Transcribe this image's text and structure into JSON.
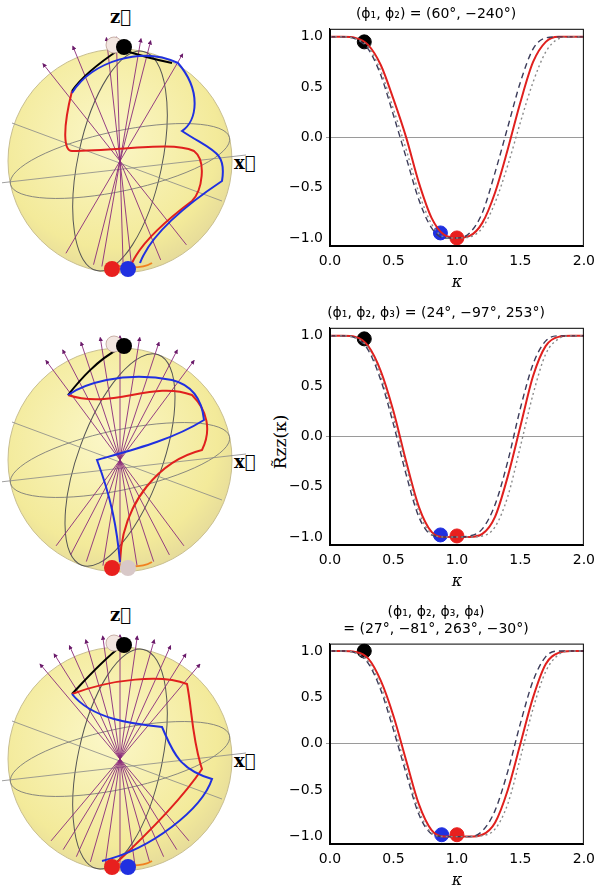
{
  "chart_data": [
    {
      "type": "line",
      "title": "(ϕ₁, ϕ₂) = (60°, −240°)",
      "x_label": "κ",
      "xlim": [
        0,
        2
      ],
      "xticks": [
        {
          "value": 0,
          "label": "0.0"
        },
        {
          "value": 0.5,
          "label": "0.5"
        },
        {
          "value": 1,
          "label": "1.0"
        },
        {
          "value": 1.5,
          "label": "1.5"
        },
        {
          "value": 2,
          "label": "2.0"
        }
      ],
      "ylim": [
        -1.08,
        1.08
      ],
      "yticks": [
        {
          "value": -1,
          "label": "−1.0"
        },
        {
          "value": -0.5,
          "label": "−0.5"
        },
        {
          "value": 0,
          "label": "0.0"
        },
        {
          "value": 0.5,
          "label": "0.5"
        },
        {
          "value": 1,
          "label": "1.0"
        }
      ],
      "grid": false,
      "x": [
        0,
        0.1,
        0.2,
        0.3,
        0.4,
        0.5,
        0.6,
        0.7,
        0.8,
        0.9,
        1.0,
        1.1,
        1.2,
        1.3,
        1.4,
        1.5,
        1.6,
        1.7,
        1.8,
        1.9,
        2.0
      ],
      "series": [
        {
          "color": "#8a8a8a",
          "line_style": "dotted",
          "values": [
            1,
            1,
            0.98,
            0.9,
            0.66,
            0.28,
            -0.12,
            -0.55,
            -0.86,
            -0.99,
            -1,
            -0.99,
            -0.9,
            -0.65,
            -0.28,
            0.15,
            0.55,
            0.85,
            0.98,
            1,
            1
          ]
        },
        {
          "color": "#3c3c5a",
          "line_style": "dashed",
          "values": [
            1,
            1,
            0.98,
            0.88,
            0.62,
            0.22,
            -0.2,
            -0.62,
            -0.9,
            -1,
            -1,
            -0.95,
            -0.75,
            -0.35,
            0.1,
            0.55,
            0.88,
            0.99,
            1,
            1,
            1
          ]
        },
        {
          "color": "#e0201e",
          "line_style": "solid",
          "values": [
            1,
            1,
            0.99,
            0.92,
            0.72,
            0.38,
            0.0,
            -0.45,
            -0.8,
            -0.97,
            -1.0,
            -0.98,
            -0.85,
            -0.55,
            -0.12,
            0.35,
            0.75,
            0.95,
            1,
            1,
            1
          ]
        }
      ],
      "points": [
        {
          "x": 0.27,
          "y": 0.95,
          "color": "#000000",
          "marker": "circle"
        },
        {
          "x": 0.87,
          "y": -0.95,
          "color": "#2030e0",
          "marker": "circle"
        },
        {
          "x": 1.0,
          "y": -1.0,
          "color": "#e8201e",
          "marker": "circle"
        }
      ]
    },
    {
      "type": "line",
      "title": "(ϕ₁, ϕ₂, ϕ₃) = (24°, −97°, 253°)",
      "x_label": "κ",
      "y_label": "R̃zz(κ)",
      "xlim": [
        0,
        2
      ],
      "xticks": [
        {
          "value": 0,
          "label": "0.0"
        },
        {
          "value": 0.5,
          "label": "0.5"
        },
        {
          "value": 1,
          "label": "1.0"
        },
        {
          "value": 1.5,
          "label": "1.5"
        },
        {
          "value": 2,
          "label": "2.0"
        }
      ],
      "ylim": [
        -1.08,
        1.08
      ],
      "yticks": [
        {
          "value": -1,
          "label": "−1.0"
        },
        {
          "value": -0.5,
          "label": "−0.5"
        },
        {
          "value": 0,
          "label": "0.0"
        },
        {
          "value": 0.5,
          "label": "0.5"
        },
        {
          "value": 1,
          "label": "1.0"
        }
      ],
      "grid": false,
      "x": [
        0,
        0.1,
        0.2,
        0.3,
        0.4,
        0.5,
        0.6,
        0.7,
        0.8,
        0.9,
        1.0,
        1.1,
        1.2,
        1.3,
        1.4,
        1.5,
        1.6,
        1.7,
        1.8,
        1.9,
        2.0
      ],
      "series": [
        {
          "color": "#8a8a8a",
          "line_style": "dotted",
          "values": [
            1,
            1,
            0.98,
            0.88,
            0.6,
            0.18,
            -0.3,
            -0.75,
            -0.97,
            -1,
            -1,
            -1,
            -0.99,
            -0.9,
            -0.6,
            -0.1,
            0.42,
            0.82,
            0.97,
            1,
            1
          ]
        },
        {
          "color": "#3c3c5a",
          "line_style": "dashed",
          "values": [
            1,
            1,
            0.98,
            0.86,
            0.56,
            0.12,
            -0.38,
            -0.8,
            -0.98,
            -1,
            -1,
            -0.99,
            -0.92,
            -0.68,
            -0.25,
            0.28,
            0.72,
            0.95,
            1,
            1,
            1
          ]
        },
        {
          "color": "#e0201e",
          "line_style": "solid",
          "values": [
            1,
            1,
            0.99,
            0.9,
            0.65,
            0.25,
            -0.25,
            -0.7,
            -0.95,
            -1,
            -1,
            -1,
            -0.97,
            -0.8,
            -0.4,
            0.1,
            0.6,
            0.9,
            0.99,
            1,
            1
          ]
        }
      ],
      "points": [
        {
          "x": 0.27,
          "y": 0.97,
          "color": "#000000",
          "marker": "circle"
        },
        {
          "x": 0.87,
          "y": -0.98,
          "color": "#2030e0",
          "marker": "circle"
        },
        {
          "x": 1.0,
          "y": -0.99,
          "color": "#e8201e",
          "marker": "circle"
        }
      ]
    },
    {
      "type": "line",
      "title": [
        "(ϕ₁, ϕ₂, ϕ₃, ϕ₄)",
        "= (27°, −81°, 263°, −30°)"
      ],
      "x_label": "κ",
      "xlim": [
        0,
        2
      ],
      "xticks": [
        {
          "value": 0,
          "label": "0.0"
        },
        {
          "value": 0.5,
          "label": "0.5"
        },
        {
          "value": 1,
          "label": "1.0"
        },
        {
          "value": 1.5,
          "label": "1.5"
        },
        {
          "value": 2,
          "label": "2.0"
        }
      ],
      "ylim": [
        -1.08,
        1.08
      ],
      "yticks": [
        {
          "value": -1,
          "label": "−1.0"
        },
        {
          "value": -0.5,
          "label": "−0.5"
        },
        {
          "value": 0,
          "label": "0.0"
        },
        {
          "value": 0.5,
          "label": "0.5"
        },
        {
          "value": 1,
          "label": "1.0"
        }
      ],
      "grid": false,
      "x": [
        0,
        0.1,
        0.2,
        0.3,
        0.4,
        0.5,
        0.6,
        0.7,
        0.8,
        0.9,
        1.0,
        1.1,
        1.2,
        1.3,
        1.4,
        1.5,
        1.6,
        1.7,
        1.8,
        1.9,
        2.0
      ],
      "series": [
        {
          "color": "#8a8a8a",
          "line_style": "dotted",
          "values": [
            1,
            1,
            0.98,
            0.89,
            0.62,
            0.2,
            -0.27,
            -0.72,
            -0.96,
            -1,
            -1,
            -1,
            -0.99,
            -0.92,
            -0.65,
            -0.15,
            0.38,
            0.78,
            0.96,
            1,
            1
          ]
        },
        {
          "color": "#3c3c5a",
          "line_style": "dashed",
          "values": [
            1,
            1,
            0.98,
            0.87,
            0.58,
            0.15,
            -0.32,
            -0.76,
            -0.97,
            -1,
            -1,
            -1,
            -0.94,
            -0.72,
            -0.3,
            0.22,
            0.68,
            0.94,
            1,
            1,
            1
          ]
        },
        {
          "color": "#e0201e",
          "line_style": "solid",
          "values": [
            1,
            1,
            0.99,
            0.92,
            0.68,
            0.3,
            -0.18,
            -0.65,
            -0.93,
            -1,
            -1,
            -1,
            -0.98,
            -0.85,
            -0.5,
            0.0,
            0.5,
            0.86,
            0.98,
            1,
            1
          ]
        }
      ],
      "points": [
        {
          "x": 0.27,
          "y": 1.0,
          "color": "#000000",
          "marker": "circle"
        },
        {
          "x": 0.88,
          "y": -0.98,
          "color": "#2030e0",
          "marker": "circle"
        },
        {
          "x": 1.0,
          "y": -0.98,
          "color": "#e8201e",
          "marker": "circle"
        }
      ]
    }
  ],
  "spheres": [
    {
      "z_label": "z⃗",
      "x_label": "x⃗"
    },
    {
      "x_label": "x⃗"
    },
    {
      "z_label": "z⃗",
      "x_label": "x⃗"
    }
  ]
}
